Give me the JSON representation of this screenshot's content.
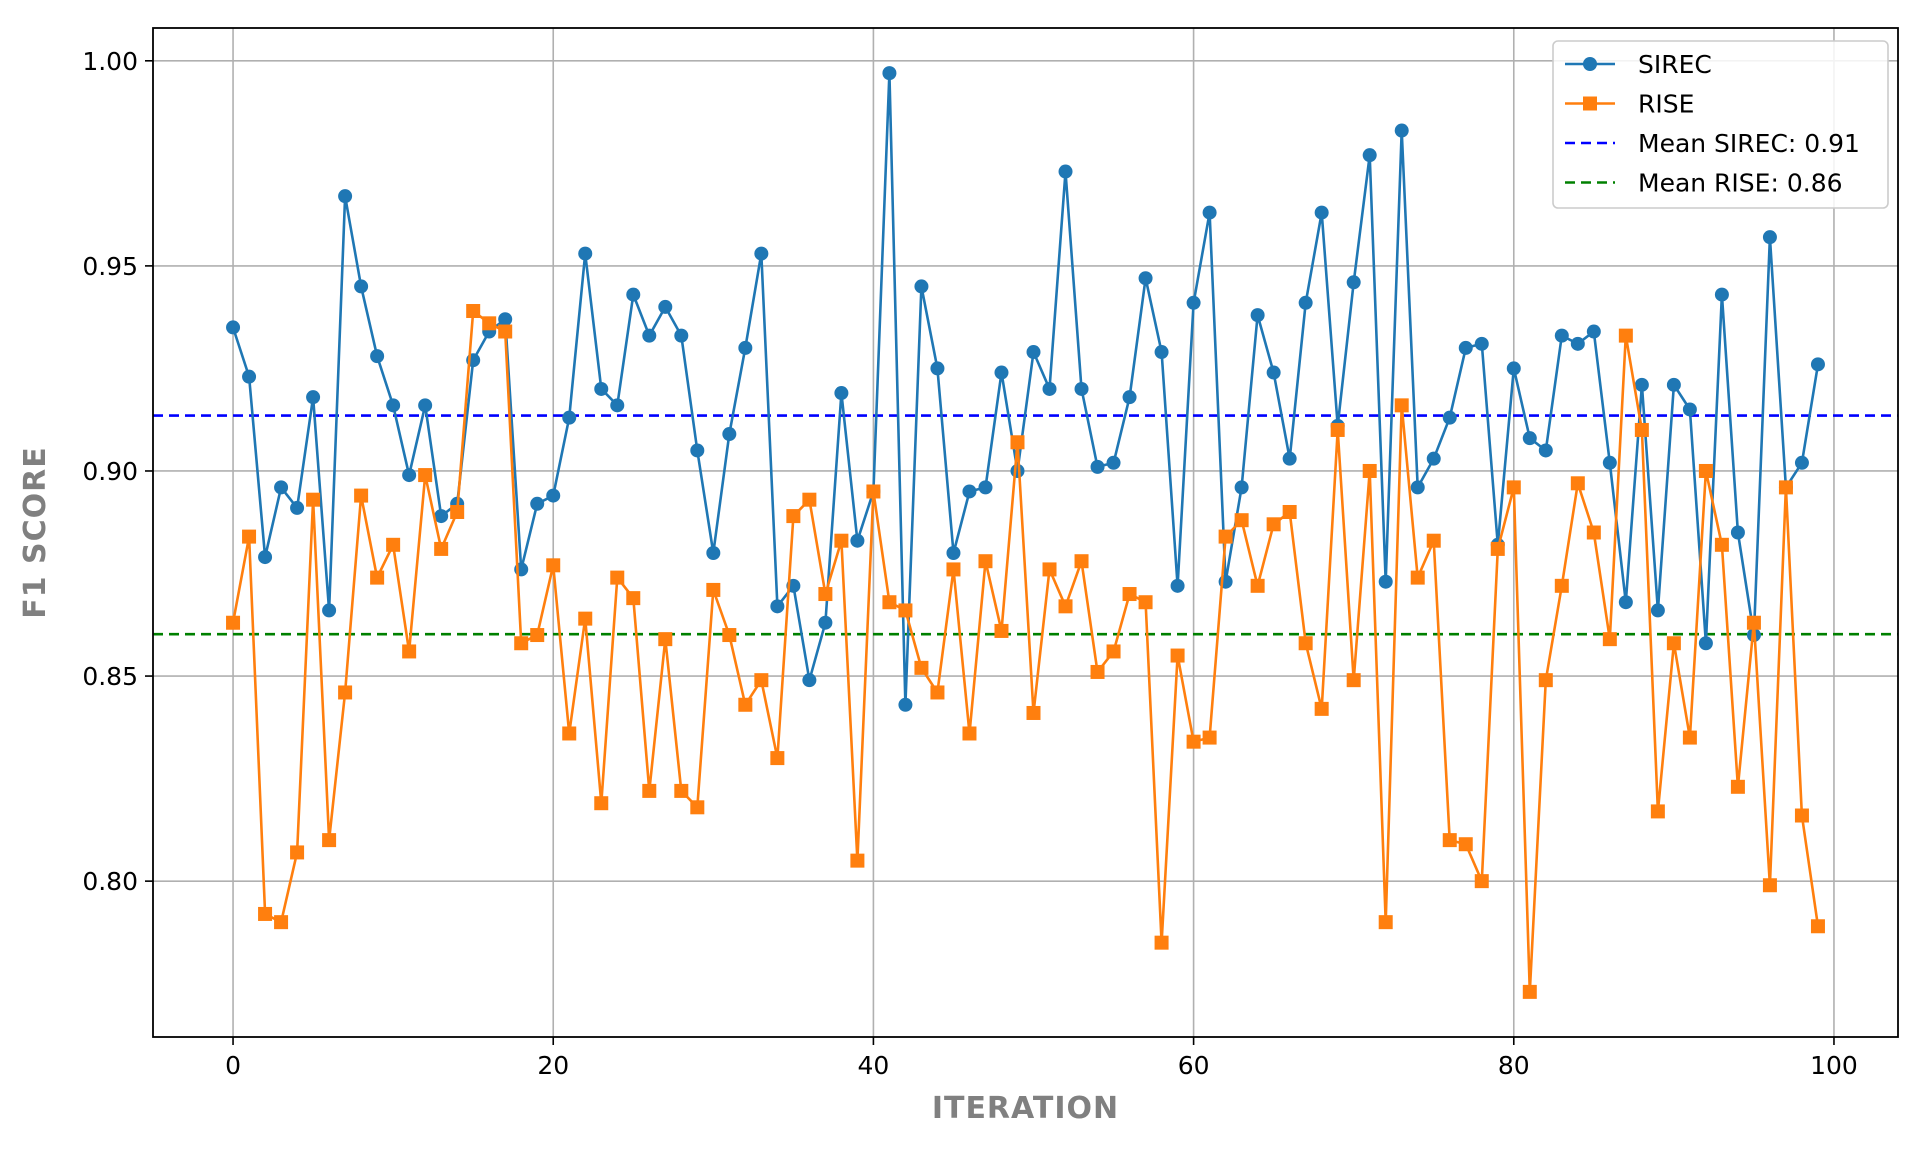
{
  "chart_data": {
    "type": "line",
    "title": "",
    "xlabel": "ITERATION",
    "ylabel": "F1 SCORE",
    "xlim": [
      -5,
      104
    ],
    "ylim": [
      0.762,
      1.008
    ],
    "xticks": [
      0,
      20,
      40,
      60,
      80,
      100
    ],
    "xtick_labels": [
      "0",
      "20",
      "40",
      "60",
      "80",
      "100"
    ],
    "yticks": [
      0.8,
      0.85,
      0.9,
      0.95,
      1.0
    ],
    "ytick_labels": [
      "0.80",
      "0.85",
      "0.90",
      "0.95",
      "1.00"
    ],
    "grid": true,
    "legend_position": "top-right",
    "x": [
      0,
      1,
      2,
      3,
      4,
      5,
      6,
      7,
      8,
      9,
      10,
      11,
      12,
      13,
      14,
      15,
      16,
      17,
      18,
      19,
      20,
      21,
      22,
      23,
      24,
      25,
      26,
      27,
      28,
      29,
      30,
      31,
      32,
      33,
      34,
      35,
      36,
      37,
      38,
      39,
      40,
      41,
      42,
      43,
      44,
      45,
      46,
      47,
      48,
      49,
      50,
      51,
      52,
      53,
      54,
      55,
      56,
      57,
      58,
      59,
      60,
      61,
      62,
      63,
      64,
      65,
      66,
      67,
      68,
      69,
      70,
      71,
      72,
      73,
      74,
      75,
      76,
      77,
      78,
      79,
      80,
      81,
      82,
      83,
      84,
      85,
      86,
      87,
      88,
      89,
      90,
      91,
      92,
      93,
      94,
      95,
      96,
      97,
      98,
      99
    ],
    "series": [
      {
        "name": "SIREC",
        "color": "#1f77b4",
        "marker": "circle",
        "values": [
          0.935,
          0.923,
          0.879,
          0.896,
          0.891,
          0.918,
          0.866,
          0.967,
          0.945,
          0.928,
          0.916,
          0.899,
          0.916,
          0.889,
          0.892,
          0.927,
          0.934,
          0.937,
          0.876,
          0.892,
          0.894,
          0.913,
          0.953,
          0.92,
          0.916,
          0.943,
          0.933,
          0.94,
          0.933,
          0.905,
          0.88,
          0.909,
          0.93,
          0.953,
          0.867,
          0.872,
          0.849,
          0.863,
          0.919,
          0.883,
          0.895,
          0.997,
          0.843,
          0.945,
          0.925,
          0.88,
          0.895,
          0.896,
          0.924,
          0.9,
          0.929,
          0.92,
          0.973,
          0.92,
          0.901,
          0.902,
          0.918,
          0.947,
          0.929,
          0.872,
          0.941,
          0.963,
          0.873,
          0.896,
          0.938,
          0.924,
          0.903,
          0.941,
          0.963,
          0.911,
          0.946,
          0.977,
          0.873,
          0.983,
          0.896,
          0.903,
          0.913,
          0.93,
          0.931,
          0.882,
          0.925,
          0.908,
          0.905,
          0.933,
          0.931,
          0.934,
          0.902,
          0.868,
          0.921,
          0.866,
          0.921,
          0.915,
          0.858,
          0.943,
          0.885,
          0.86,
          0.957,
          0.896,
          0.902,
          0.926
        ]
      },
      {
        "name": "RISE",
        "color": "#ff7f0e",
        "marker": "square",
        "values": [
          0.863,
          0.884,
          0.792,
          0.79,
          0.807,
          0.893,
          0.81,
          0.846,
          0.894,
          0.874,
          0.882,
          0.856,
          0.899,
          0.881,
          0.89,
          0.939,
          0.936,
          0.934,
          0.858,
          0.86,
          0.877,
          0.836,
          0.864,
          0.819,
          0.874,
          0.869,
          0.822,
          0.859,
          0.822,
          0.818,
          0.871,
          0.86,
          0.843,
          0.849,
          0.83,
          0.889,
          0.893,
          0.87,
          0.883,
          0.805,
          0.895,
          0.868,
          0.866,
          0.852,
          0.846,
          0.876,
          0.836,
          0.878,
          0.861,
          0.907,
          0.841,
          0.876,
          0.867,
          0.878,
          0.851,
          0.856,
          0.87,
          0.868,
          0.785,
          0.855,
          0.834,
          0.835,
          0.884,
          0.888,
          0.872,
          0.887,
          0.89,
          0.858,
          0.842,
          0.91,
          0.849,
          0.9,
          0.79,
          0.916,
          0.874,
          0.883,
          0.81,
          0.809,
          0.8,
          0.881,
          0.896,
          0.773,
          0.849,
          0.872,
          0.897,
          0.885,
          0.859,
          0.933,
          0.91,
          0.817,
          0.858,
          0.835,
          0.9,
          0.882,
          0.823,
          0.863,
          0.799,
          0.896,
          0.816,
          0.789
        ]
      }
    ],
    "reference_lines": [
      {
        "name": "Mean SIREC: 0.91",
        "value": 0.9135,
        "color": "#0000ff",
        "style": "dashed"
      },
      {
        "name": "Mean RISE: 0.86",
        "value": 0.8602,
        "color": "#008000",
        "style": "dashed"
      }
    ]
  }
}
